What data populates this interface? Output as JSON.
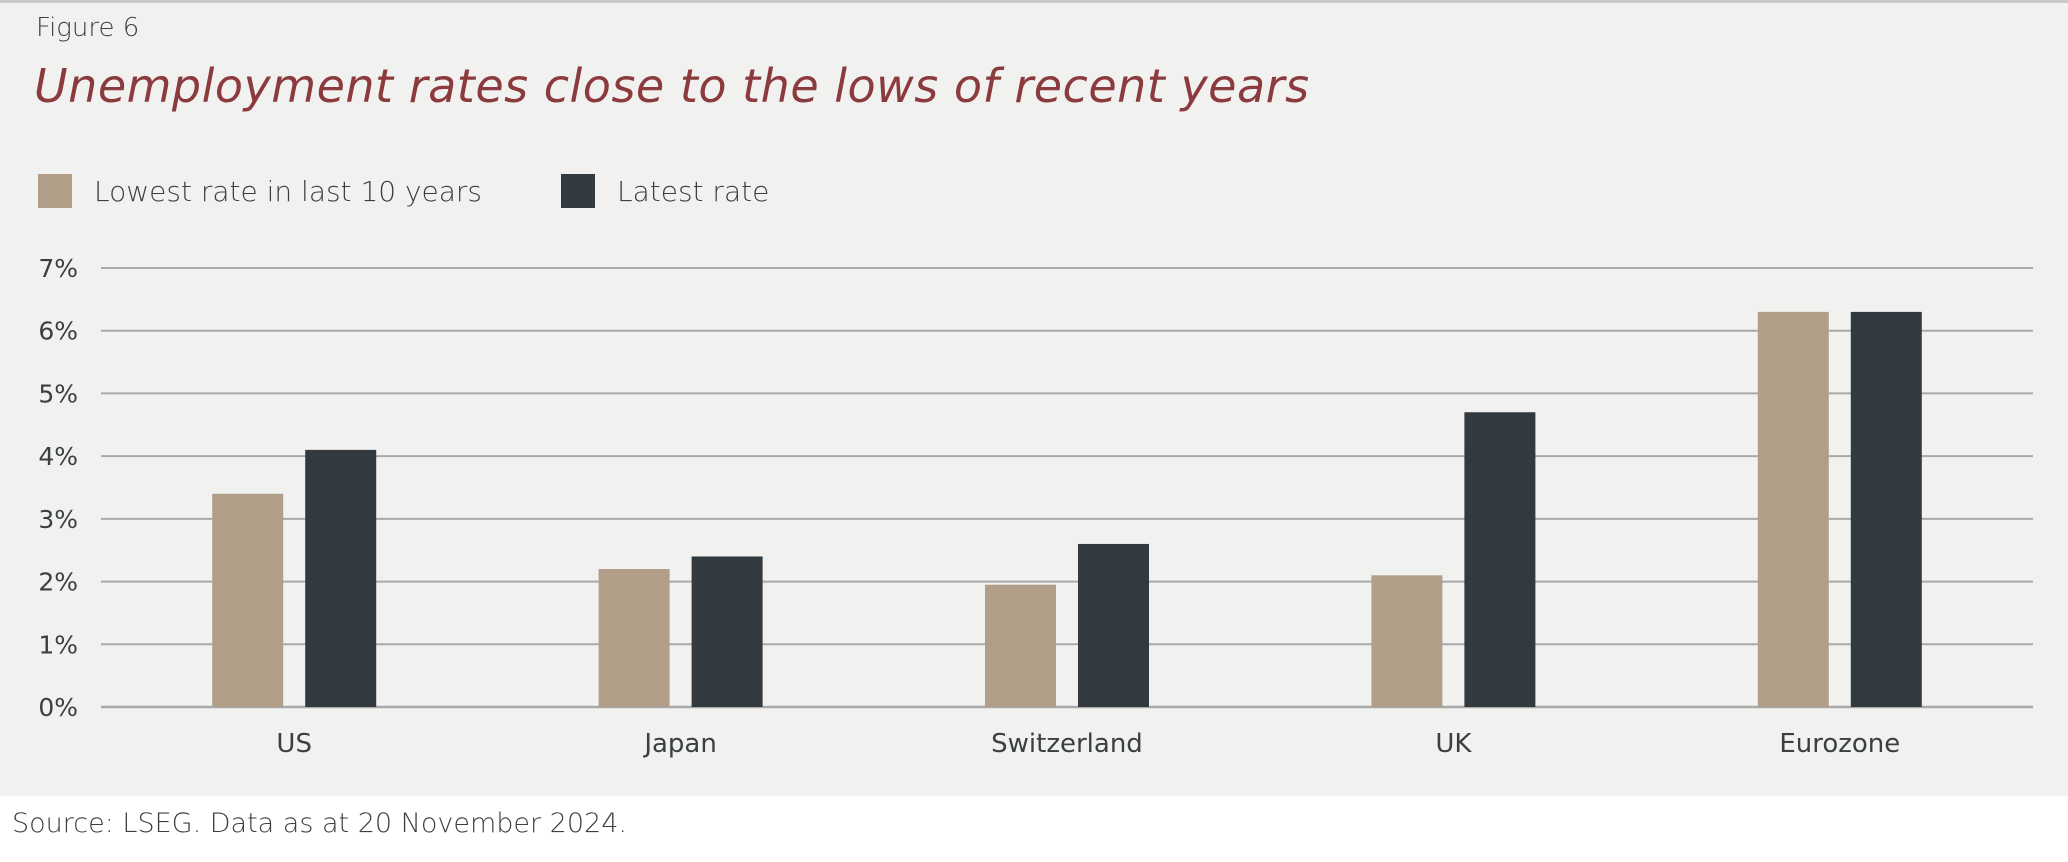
{
  "figure_label": "Figure 6",
  "source": "Source: LSEG. Data as at 20 November 2024.",
  "colors": {
    "title": "#8b3a3e",
    "lowest": "#b19e89",
    "latest": "#323a40",
    "grid": "#a9a9a9",
    "background": "#f1f1ef"
  },
  "chart_data": {
    "type": "bar",
    "title": "Unemployment rates close to the lows of recent years",
    "xlabel": "",
    "ylabel": "",
    "categories": [
      "US",
      "Japan",
      "Switzerland",
      "UK",
      "Eurozone"
    ],
    "series": [
      {
        "name": "Lowest rate in last 10 years",
        "values": [
          3.4,
          2.2,
          1.95,
          2.1,
          6.3
        ],
        "color": "#b19e89"
      },
      {
        "name": "Latest rate",
        "values": [
          4.1,
          2.4,
          2.6,
          4.7,
          6.3
        ],
        "color": "#323a40"
      }
    ],
    "ylim": [
      0,
      7
    ],
    "yticks": [
      0,
      1,
      2,
      3,
      4,
      5,
      6,
      7
    ],
    "ytick_labels": [
      "0%",
      "1%",
      "2%",
      "3%",
      "4%",
      "5%",
      "6%",
      "7%"
    ],
    "grid": true,
    "legend_position": "top-left"
  }
}
